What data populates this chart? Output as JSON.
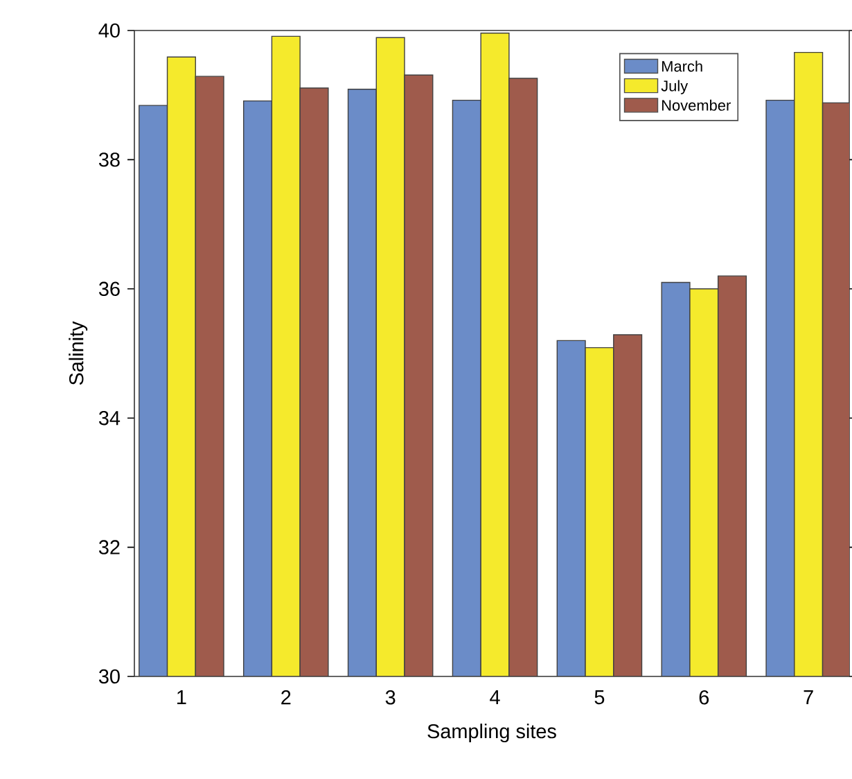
{
  "chart_data": {
    "type": "bar",
    "xlabel": "Sampling sites",
    "ylabel": "Salinity",
    "categories": [
      "1",
      "2",
      "3",
      "4",
      "5",
      "6",
      "7"
    ],
    "series": [
      {
        "name": "March",
        "color": "#6b8cc8",
        "values": [
          38.84,
          38.91,
          39.09,
          38.92,
          35.2,
          36.1,
          38.92
        ]
      },
      {
        "name": "July",
        "color": "#f5ea2c",
        "values": [
          39.59,
          39.91,
          39.89,
          39.96,
          35.09,
          36.0,
          39.66
        ]
      },
      {
        "name": "November",
        "color": "#9f5b4c",
        "values": [
          39.29,
          39.11,
          39.31,
          39.26,
          35.29,
          36.2,
          38.88
        ]
      }
    ],
    "ylim": [
      30,
      40
    ],
    "yticks": [
      30,
      32,
      34,
      36,
      38,
      40
    ],
    "legend": "top right"
  }
}
